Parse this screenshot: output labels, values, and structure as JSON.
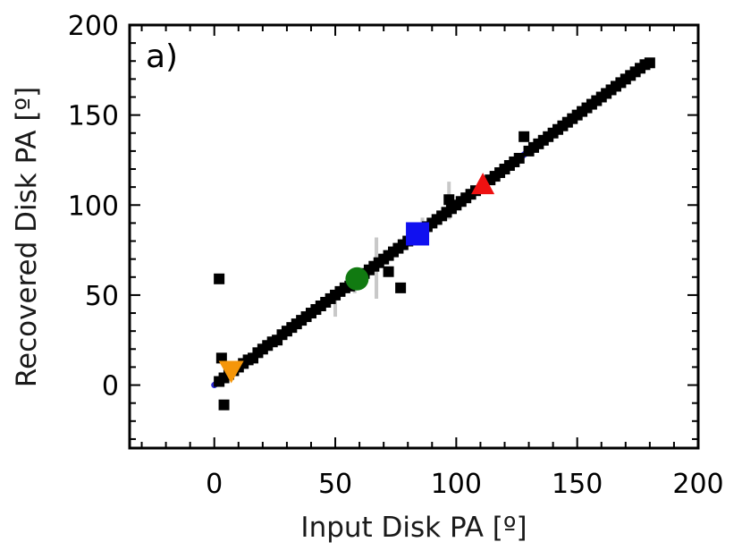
{
  "chart_data": {
    "type": "scatter",
    "panel_label": "a)",
    "xlabel": "Input Disk PA [º]",
    "ylabel": "Recovered Disk PA [º]",
    "xlim": [
      -35,
      200
    ],
    "ylim": [
      -35,
      200
    ],
    "x_ticks": [
      0,
      50,
      100,
      150,
      200
    ],
    "y_ticks": [
      0,
      50,
      100,
      150,
      200
    ],
    "grid": false,
    "reference_lines": [
      {
        "name": "",
        "color": "#2a2ad0",
        "style": "solid",
        "points": [
          [
            0,
            0
          ],
          [
            180,
            180
          ]
        ]
      },
      {
        "name": "",
        "color": "#e01010",
        "style": "dashed",
        "points": [
          [
            0,
            0
          ],
          [
            180,
            180
          ]
        ]
      }
    ],
    "error_bars": [
      {
        "x": 50,
        "y": 43,
        "ylow": 38,
        "yhigh": 48
      },
      {
        "x": 58,
        "y": 56,
        "ylow": 51,
        "yhigh": 60
      },
      {
        "x": 67,
        "y": 65,
        "ylow": 48,
        "yhigh": 82
      },
      {
        "x": 86,
        "y": 86,
        "ylow": 78,
        "yhigh": 93
      },
      {
        "x": 97,
        "y": 100,
        "ylow": 92,
        "yhigh": 113
      }
    ],
    "series": [
      {
        "marker": "square",
        "color": "#000000",
        "points": [
          [
            2,
            2
          ],
          [
            4,
            4
          ],
          [
            6,
            6
          ],
          [
            8,
            8
          ],
          [
            10,
            10
          ],
          [
            12,
            12
          ],
          [
            14,
            14
          ],
          [
            16,
            15
          ],
          [
            18,
            18
          ],
          [
            20,
            20
          ],
          [
            22,
            22
          ],
          [
            24,
            24
          ],
          [
            26,
            25
          ],
          [
            28,
            28
          ],
          [
            30,
            30
          ],
          [
            32,
            32
          ],
          [
            34,
            34
          ],
          [
            36,
            36
          ],
          [
            38,
            38
          ],
          [
            40,
            40
          ],
          [
            42,
            42
          ],
          [
            44,
            44
          ],
          [
            46,
            46
          ],
          [
            48,
            48
          ],
          [
            50,
            50
          ],
          [
            52,
            52
          ],
          [
            54,
            54
          ],
          [
            56,
            55
          ],
          [
            60,
            60
          ],
          [
            62,
            62
          ],
          [
            64,
            64
          ],
          [
            66,
            66
          ],
          [
            68,
            68
          ],
          [
            70,
            70
          ],
          [
            72,
            72
          ],
          [
            74,
            74
          ],
          [
            76,
            76
          ],
          [
            78,
            78
          ],
          [
            80,
            80
          ],
          [
            82,
            82
          ],
          [
            88,
            88
          ],
          [
            90,
            90
          ],
          [
            92,
            92
          ],
          [
            94,
            94
          ],
          [
            96,
            96
          ],
          [
            98,
            98
          ],
          [
            100,
            100
          ],
          [
            102,
            102
          ],
          [
            104,
            104
          ],
          [
            106,
            106
          ],
          [
            108,
            108
          ],
          [
            114,
            114
          ],
          [
            116,
            116
          ],
          [
            118,
            118
          ],
          [
            120,
            120
          ],
          [
            122,
            122
          ],
          [
            124,
            124
          ],
          [
            126,
            126
          ],
          [
            130,
            130
          ],
          [
            132,
            132
          ],
          [
            134,
            134
          ],
          [
            136,
            136
          ],
          [
            138,
            138
          ],
          [
            140,
            140
          ],
          [
            142,
            142
          ],
          [
            144,
            144
          ],
          [
            146,
            146
          ],
          [
            148,
            148
          ],
          [
            150,
            150
          ],
          [
            152,
            152
          ],
          [
            154,
            154
          ],
          [
            156,
            156
          ],
          [
            158,
            158
          ],
          [
            160,
            160
          ],
          [
            162,
            162
          ],
          [
            164,
            164
          ],
          [
            166,
            166
          ],
          [
            168,
            168
          ],
          [
            170,
            170
          ],
          [
            172,
            172
          ],
          [
            174,
            174
          ],
          [
            176,
            176
          ],
          [
            178,
            178
          ],
          [
            180,
            179
          ],
          [
            2,
            59
          ],
          [
            4,
            -11
          ],
          [
            3,
            15
          ],
          [
            77,
            54
          ],
          [
            72,
            63
          ],
          [
            128,
            138
          ],
          [
            97,
            103
          ],
          [
            84,
            86
          ]
        ]
      },
      {
        "marker": "triangle-down",
        "color": "#f5960a",
        "points": [
          [
            7,
            8
          ]
        ]
      },
      {
        "marker": "circle",
        "color": "#117a11",
        "points": [
          [
            59,
            59
          ]
        ]
      },
      {
        "marker": "square",
        "color": "#1010f0",
        "points": [
          [
            84,
            84
          ]
        ]
      },
      {
        "marker": "triangle-up",
        "color": "#ee1111",
        "points": [
          [
            111,
            111
          ]
        ]
      }
    ]
  }
}
